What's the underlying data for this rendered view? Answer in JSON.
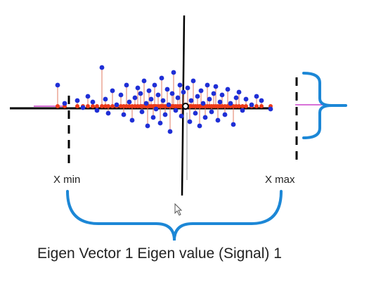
{
  "diagram": {
    "caption": "Eigen Vector 1 Eigen value (Signal) 1",
    "xmin_label": "X min",
    "xmax_label": "X max",
    "icons": {
      "cursor": "mouse-pointer-icon"
    },
    "colors": {
      "axis": "#000000",
      "points": "#1f2fd6",
      "projection_points": "#ee3b1a",
      "projection_lines": "#e07a5f",
      "brace": "#1c87d6",
      "extent_tick": "#cc44cc"
    }
  },
  "chart_data": {
    "type": "scatter",
    "title": "",
    "xlabel": "",
    "ylabel": "",
    "series": [
      {
        "points": [
          [
            -168,
            30
          ],
          [
            -158,
            4
          ],
          [
            -140,
            8
          ],
          [
            -132,
            -2
          ],
          [
            -125,
            14
          ],
          [
            -118,
            6
          ],
          [
            -112,
            -6
          ],
          [
            -105,
            55
          ],
          [
            -100,
            10
          ],
          [
            -96,
            -10
          ],
          [
            -90,
            22
          ],
          [
            -84,
            2
          ],
          [
            -78,
            16
          ],
          [
            -74,
            -12
          ],
          [
            -70,
            30
          ],
          [
            -66,
            6
          ],
          [
            -62,
            -20
          ],
          [
            -58,
            12
          ],
          [
            -54,
            26
          ],
          [
            -50,
            18
          ],
          [
            -48,
            -8
          ],
          [
            -45,
            36
          ],
          [
            -42,
            4
          ],
          [
            -40,
            -28
          ],
          [
            -38,
            22
          ],
          [
            -35,
            10
          ],
          [
            -32,
            -16
          ],
          [
            -30,
            30
          ],
          [
            -28,
            -4
          ],
          [
            -25,
            16
          ],
          [
            -22,
            -24
          ],
          [
            -20,
            40
          ],
          [
            -18,
            8
          ],
          [
            -15,
            -12
          ],
          [
            -12,
            24
          ],
          [
            -10,
            2
          ],
          [
            -8,
            -36
          ],
          [
            -5,
            18
          ],
          [
            -3,
            48
          ],
          [
            0,
            -6
          ],
          [
            3,
            12
          ],
          [
            6,
            30
          ],
          [
            8,
            -14
          ],
          [
            11,
            20
          ],
          [
            14,
            -2
          ],
          [
            17,
            26
          ],
          [
            20,
            -22
          ],
          [
            22,
            8
          ],
          [
            25,
            36
          ],
          [
            28,
            -10
          ],
          [
            31,
            14
          ],
          [
            34,
            -28
          ],
          [
            36,
            22
          ],
          [
            39,
            4
          ],
          [
            42,
            -16
          ],
          [
            45,
            30
          ],
          [
            48,
            10
          ],
          [
            51,
            -8
          ],
          [
            54,
            18
          ],
          [
            57,
            28
          ],
          [
            60,
            -20
          ],
          [
            63,
            6
          ],
          [
            66,
            16
          ],
          [
            70,
            -12
          ],
          [
            74,
            24
          ],
          [
            78,
            4
          ],
          [
            82,
            -26
          ],
          [
            86,
            12
          ],
          [
            90,
            20
          ],
          [
            95,
            -6
          ],
          [
            100,
            10
          ],
          [
            108,
            2
          ],
          [
            115,
            14
          ],
          [
            122,
            8
          ],
          [
            135,
            -4
          ]
        ]
      }
    ],
    "xlim": [
      -200,
      180
    ],
    "ylim": [
      -60,
      60
    ]
  }
}
